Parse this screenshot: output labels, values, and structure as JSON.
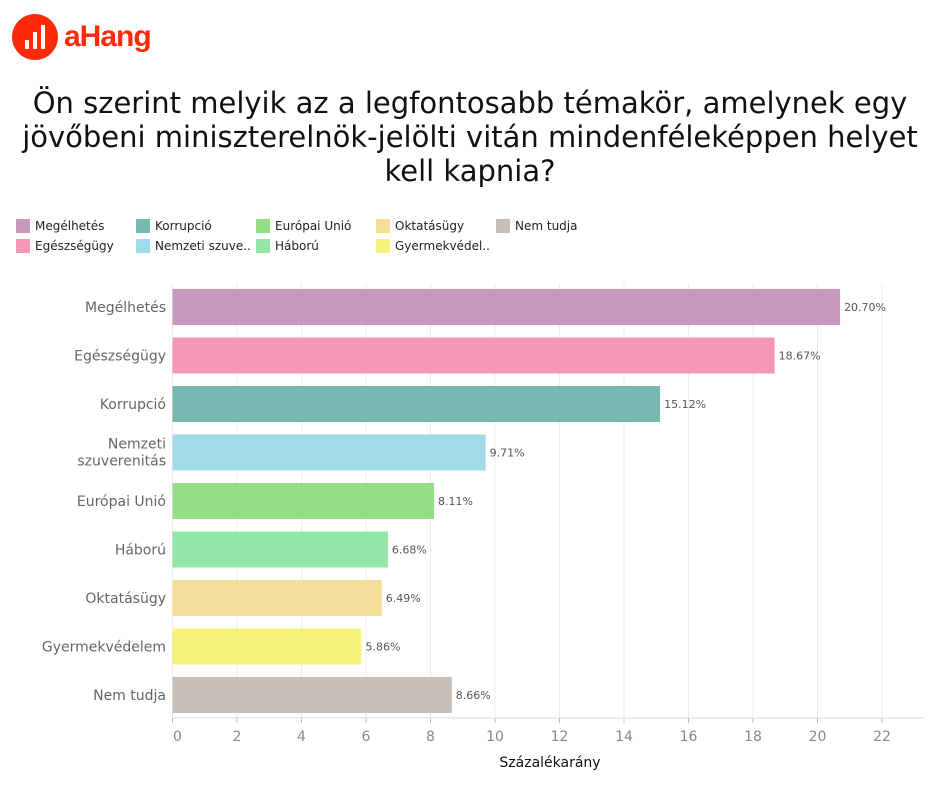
{
  "logo": {
    "text": "aHang"
  },
  "title": "Ön szerint melyik az a legfontosabb témakör, amelynek egy jövőbeni miniszterelnök-jelölti vitán mindenféleképpen helyet kell kapnia?",
  "legend": [
    {
      "label": "Megélhetés",
      "color": "#c898bf"
    },
    {
      "label": "Korrupció",
      "color": "#78b8b2"
    },
    {
      "label": "Európai Unió",
      "color": "#94df86"
    },
    {
      "label": "Oktatásügy",
      "color": "#f4dd98"
    },
    {
      "label": "Nem tudja",
      "color": "#c8bfb9"
    },
    {
      "label": "Egészségügy",
      "color": "#f598b5"
    },
    {
      "label": "Nemzeti szuve..",
      "color": "#a2dbe8"
    },
    {
      "label": "Háború",
      "color": "#94e6a8"
    },
    {
      "label": "Gyermekvédel..",
      "color": "#f4f47c"
    }
  ],
  "chart_data": {
    "type": "bar",
    "orientation": "horizontal",
    "categories": [
      "Megélhetés",
      "Egészségügy",
      "Korrupció",
      "Nemzeti szuverenitás",
      "Európai Unió",
      "Háború",
      "Oktatásügy",
      "Gyermekvédelem",
      "Nem tudja"
    ],
    "values": [
      20.7,
      18.67,
      15.12,
      9.71,
      8.11,
      6.68,
      6.49,
      5.86,
      8.66
    ],
    "labels": [
      "20.70%",
      "18.67%",
      "15.12%",
      "9.71%",
      "8.11%",
      "6.68%",
      "6.49%",
      "5.86%",
      "8.66%"
    ],
    "colors": [
      "#c898bf",
      "#f598b5",
      "#78b8b2",
      "#a2dbe8",
      "#94df86",
      "#94e6a8",
      "#f4dd98",
      "#f4f47c",
      "#c8bfb9"
    ],
    "xlabel": "Százalékarány",
    "ylabel": "",
    "xlim": [
      0,
      23
    ],
    "xticks": [
      "0",
      "2",
      "4",
      "6",
      "8",
      "10",
      "12",
      "14",
      "16",
      "18",
      "20",
      "22"
    ],
    "grid": true,
    "legend_position": "top"
  }
}
